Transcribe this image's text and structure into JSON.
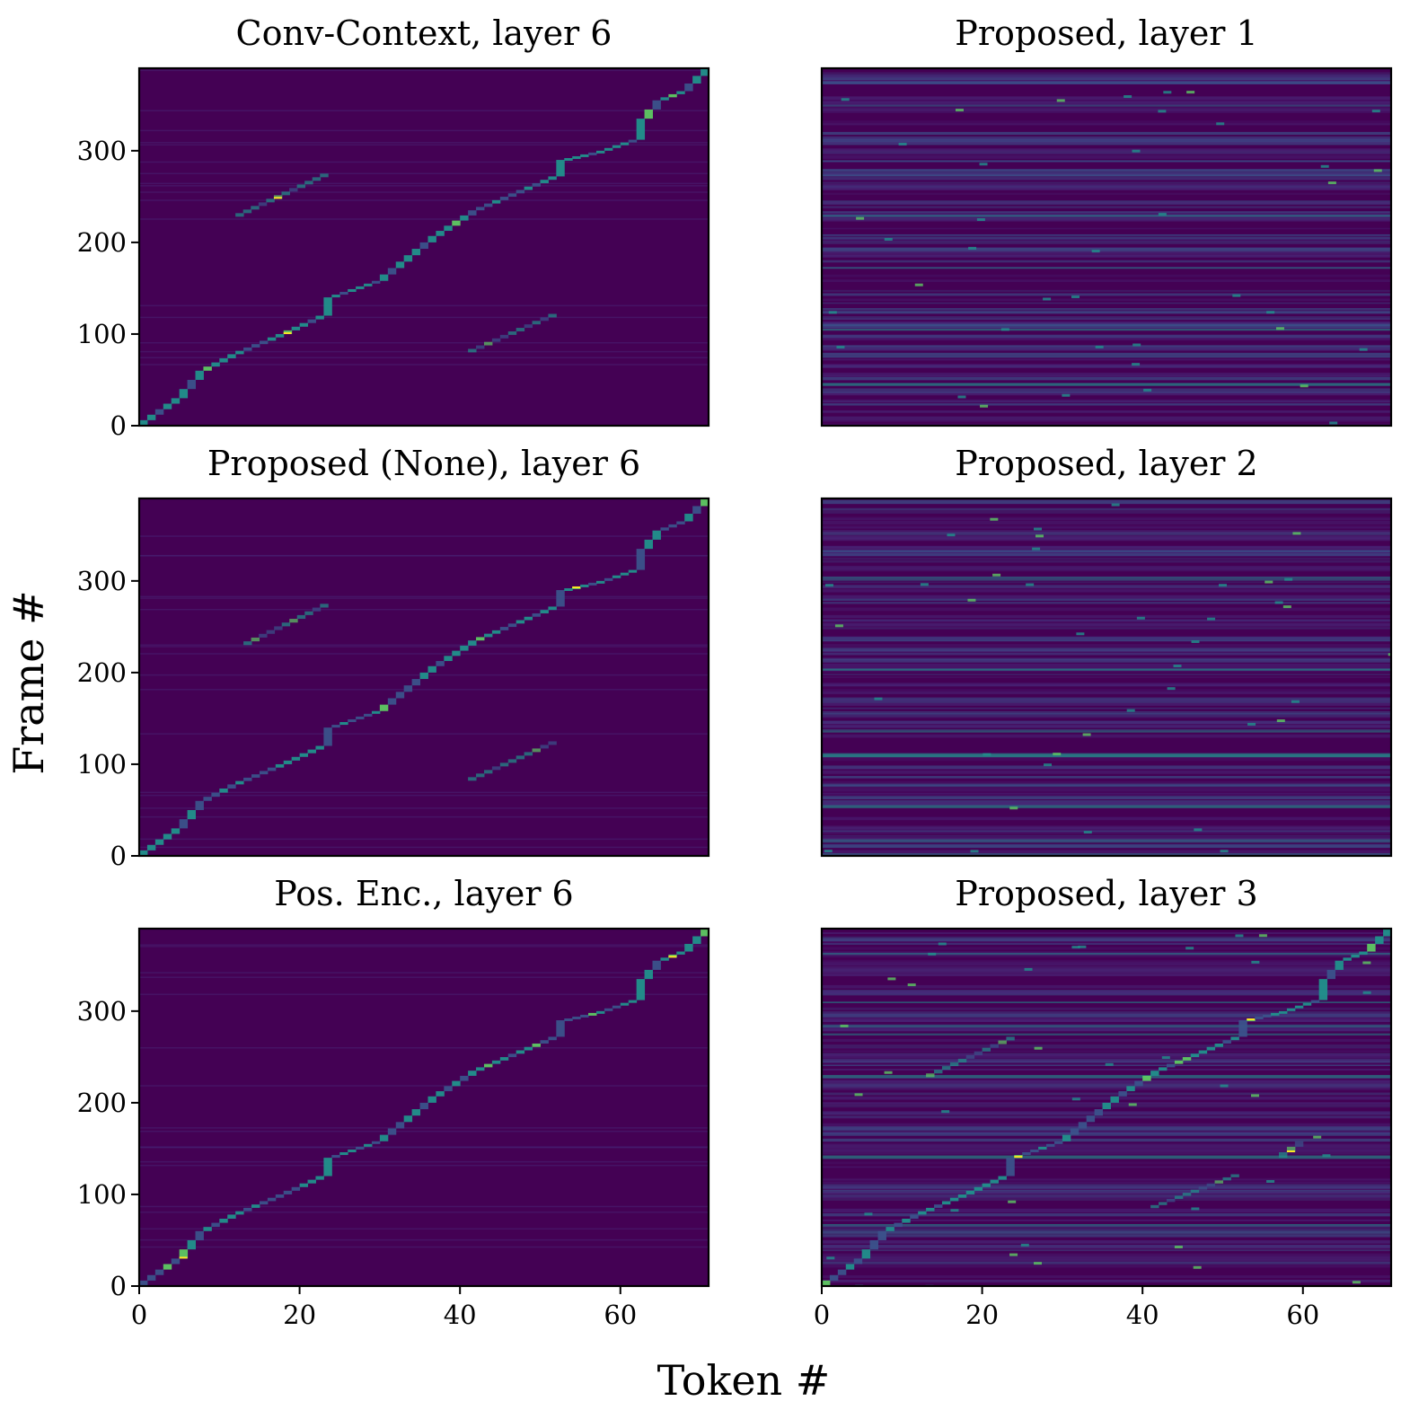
{
  "figure": {
    "xlabel": "Token #",
    "ylabel": "Frame #"
  },
  "colors": {
    "background": "#440154",
    "path_low": "#3b528b",
    "path_mid": "#21918c",
    "path_high": "#5ec962",
    "peak": "#fde725",
    "axes": "#000000"
  },
  "chart_data": [
    {
      "type": "heatmap",
      "colormap": "viridis",
      "title": "Conv-Context, layer 6",
      "xlim": [
        0,
        71
      ],
      "ylim": [
        0,
        390
      ],
      "xticks": [],
      "yticks": [
        "0",
        "100",
        "200",
        "300"
      ],
      "alignment_segments": [
        {
          "x": [
            0,
            5,
            8,
            12,
            18,
            23,
            24,
            30,
            37,
            42,
            52,
            53,
            58,
            62,
            63,
            65,
            68,
            71
          ],
          "y": [
            0,
            30,
            60,
            78,
            100,
            120,
            140,
            158,
            207,
            235,
            272,
            290,
            300,
            312,
            335,
            355,
            365,
            390
          ]
        },
        {
          "x": [
            12,
            23.5
          ],
          "y": [
            228,
            275
          ]
        },
        {
          "x": [
            41,
            52
          ],
          "y": [
            80,
            122
          ]
        }
      ],
      "background_level": "low"
    },
    {
      "type": "heatmap",
      "colormap": "viridis",
      "title": "Proposed, layer 1",
      "xlim": [
        0,
        71
      ],
      "ylim": [
        0,
        390
      ],
      "xticks": [],
      "yticks": [],
      "alignment_segments": [],
      "background_level": "diffuse"
    },
    {
      "type": "heatmap",
      "colormap": "viridis",
      "title": "Proposed (None), layer 6",
      "xlim": [
        0,
        71
      ],
      "ylim": [
        0,
        390
      ],
      "xticks": [],
      "yticks": [
        "0",
        "100",
        "200",
        "300"
      ],
      "alignment_segments": [
        {
          "x": [
            0,
            5,
            8,
            12,
            18,
            23,
            24,
            30,
            37,
            42,
            52,
            53,
            58,
            62,
            63,
            65,
            68,
            71
          ],
          "y": [
            0,
            30,
            60,
            78,
            100,
            120,
            140,
            158,
            207,
            235,
            272,
            290,
            300,
            312,
            335,
            355,
            365,
            390
          ]
        },
        {
          "x": [
            13,
            23.5
          ],
          "y": [
            230,
            275
          ]
        },
        {
          "x": [
            41,
            52
          ],
          "y": [
            82,
            125
          ]
        }
      ],
      "background_level": "low"
    },
    {
      "type": "heatmap",
      "colormap": "viridis",
      "title": "Proposed, layer 2",
      "xlim": [
        0,
        71
      ],
      "ylim": [
        0,
        390
      ],
      "xticks": [],
      "yticks": [],
      "alignment_segments": [],
      "background_level": "diffuse"
    },
    {
      "type": "heatmap",
      "colormap": "viridis",
      "title": "Pos. Enc., layer 6",
      "xlim": [
        0,
        71
      ],
      "ylim": [
        0,
        390
      ],
      "xticks": [
        "0",
        "20",
        "40",
        "60"
      ],
      "yticks": [
        "0",
        "100",
        "200",
        "300"
      ],
      "alignment_segments": [
        {
          "x": [
            0,
            5,
            8,
            12,
            18,
            23,
            24,
            30,
            37,
            42,
            52,
            53,
            58,
            62,
            63,
            65,
            68,
            71
          ],
          "y": [
            0,
            30,
            60,
            78,
            100,
            120,
            140,
            158,
            207,
            235,
            272,
            290,
            300,
            312,
            335,
            355,
            365,
            390
          ]
        }
      ],
      "background_level": "low"
    },
    {
      "type": "heatmap",
      "colormap": "viridis",
      "title": "Proposed, layer 3",
      "xlim": [
        0,
        71
      ],
      "ylim": [
        0,
        390
      ],
      "xticks": [
        "0",
        "20",
        "40",
        "60"
      ],
      "yticks": [],
      "alignment_segments": [
        {
          "x": [
            0,
            2,
            5,
            8,
            12,
            18,
            23,
            24,
            30,
            37,
            42,
            52,
            53,
            58,
            62,
            63,
            65,
            68,
            71
          ],
          "y": [
            0,
            12,
            30,
            60,
            78,
            100,
            120,
            140,
            158,
            207,
            235,
            272,
            290,
            300,
            312,
            335,
            355,
            365,
            390
          ]
        },
        {
          "x": [
            13,
            24
          ],
          "y": [
            228,
            272
          ]
        },
        {
          "x": [
            41,
            52
          ],
          "y": [
            85,
            122
          ]
        },
        {
          "x": [
            57,
            60
          ],
          "y": [
            140,
            158
          ]
        }
      ],
      "background_level": "diffuse"
    }
  ]
}
